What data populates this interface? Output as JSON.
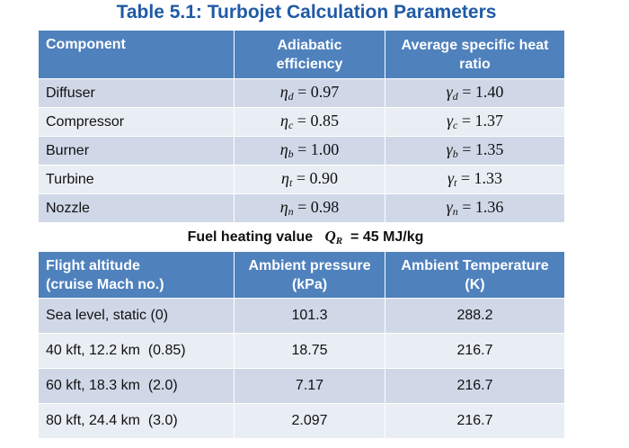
{
  "title": "Table 5.1: Turbojet Calculation Parameters",
  "components_table": {
    "headers": [
      "Component",
      "Adiabatic efficiency",
      "Average specific heat ratio"
    ],
    "rows": [
      {
        "component": "Diffuser",
        "eta_sym": "η",
        "eta_sub": "d",
        "eta_val": "0.97",
        "gamma_sym": "γ",
        "gamma_sub": "d",
        "gamma_val": "1.40"
      },
      {
        "component": "Compressor",
        "eta_sym": "η",
        "eta_sub": "c",
        "eta_val": "0.85",
        "gamma_sym": "γ",
        "gamma_sub": "c",
        "gamma_val": "1.37"
      },
      {
        "component": "Burner",
        "eta_sym": "η",
        "eta_sub": "b",
        "eta_val": "1.00",
        "gamma_sym": "γ",
        "gamma_sub": "b",
        "gamma_val": "1.35"
      },
      {
        "component": "Turbine",
        "eta_sym": "η",
        "eta_sub": "t",
        "eta_val": "0.90",
        "gamma_sym": "γ",
        "gamma_sub": "t",
        "gamma_val": "1.33"
      },
      {
        "component": "Nozzle",
        "eta_sym": "η",
        "eta_sub": "n",
        "eta_val": "0.98",
        "gamma_sym": "γ",
        "gamma_sub": "n",
        "gamma_val": "1.36"
      }
    ]
  },
  "fuel": {
    "label": "Fuel heating value",
    "symbol": "Q",
    "symbol_sub": "R",
    "value": "= 45 MJ/kg"
  },
  "flight_table": {
    "headers": [
      {
        "line1": "Flight altitude",
        "line2": "(cruise Mach no.)"
      },
      {
        "line1": "Ambient pressure",
        "line2": "(kPa)"
      },
      {
        "line1": "Ambient Temperature",
        "line2": "(K)"
      }
    ],
    "rows": [
      {
        "condition": "Sea level, static (0)",
        "pressure": "101.3",
        "temperature": "288.2"
      },
      {
        "condition": "40 kft, 12.2 km  (0.85)",
        "pressure": "18.75",
        "temperature": "216.7"
      },
      {
        "condition": "60 kft, 18.3 km  (2.0)",
        "pressure": "7.17",
        "temperature": "216.7"
      },
      {
        "condition": "80 kft, 24.4 km  (3.0)",
        "pressure": "2.097",
        "temperature": "216.7"
      }
    ]
  }
}
